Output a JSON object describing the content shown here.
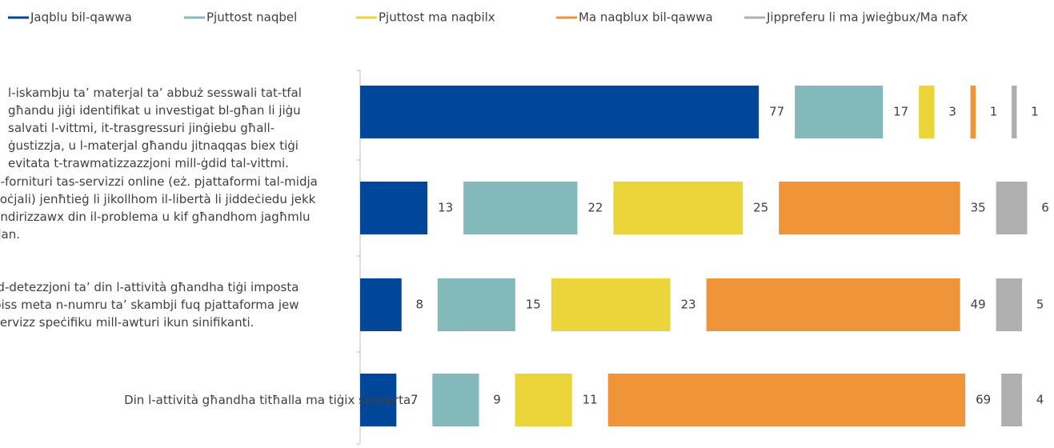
{
  "chart_data": {
    "type": "bar",
    "orientation": "horizontal",
    "stacked": true,
    "categories": [
      "l-iskambju ta’ materjal ta’ abbuż sesswali tat-tfal għandu jiġi identifikat u investigat bl-għan li jiġu salvati l-vittmi, it-trasgressuri jinġiebu għall-ġustizzja, u l-materjal għandu jitnaqqas biex tiġi evitata t-trawmatizzazzjoni mill-ġdid tal-vittmi.",
      "Il-fornituri tas-servizzi online (eż. pjattaformi tal-midja soċjali) jenħtieġ li jikollhom il-libertà li jiddeċiedu jekk jindirizzawx din il-problema u kif għandhom jagħmlu dan.",
      "Id-detezzjoni ta’ din l-attività għandha tiġi imposta biss meta n-numru ta’ skambji fuq pjattaforma jew servizz speċifiku mill-awturi ikun sinifikanti.",
      "Din l-attività għandha titħalla ma tiġix skoperta."
    ],
    "series": [
      {
        "name": "Jaqblu bil-qawwa",
        "color": "#00479a",
        "values": [
          77,
          13,
          8,
          7
        ]
      },
      {
        "name": "Pjuttost naqbel",
        "color": "#84b9bb",
        "values": [
          17,
          22,
          15,
          9
        ]
      },
      {
        "name": "Pjuttost ma naqbilx",
        "color": "#ebd53a",
        "values": [
          3,
          25,
          23,
          11
        ]
      },
      {
        "name": "Ma naqblux bil-qawwa",
        "color": "#f0943a",
        "values": [
          1,
          35,
          49,
          69
        ]
      },
      {
        "name": "Jippreferu li ma jwieġbux/Ma nafx",
        "color": "#b0b0b0",
        "values": [
          1,
          6,
          5,
          4
        ]
      }
    ],
    "legend": "top"
  }
}
